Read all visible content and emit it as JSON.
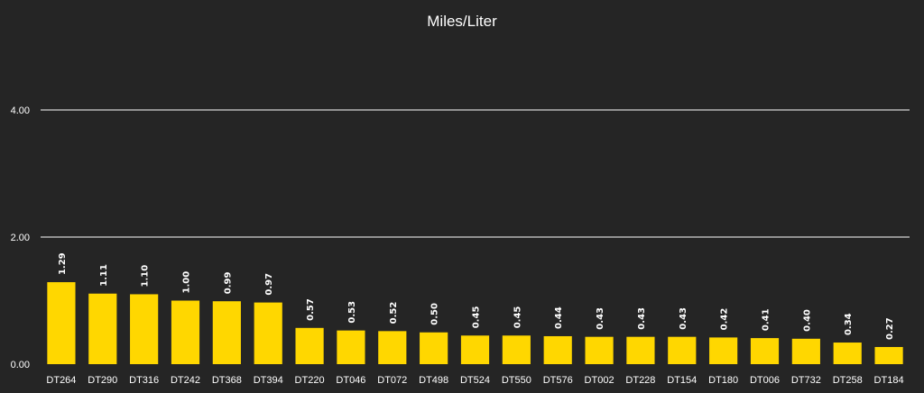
{
  "colors": {
    "background": "#252525",
    "bar": "#FFD700",
    "grid": "#ffffff",
    "text": "#ffffff"
  },
  "chart_data": {
    "type": "bar",
    "title": "Miles/Liter",
    "xlabel": "",
    "ylabel": "",
    "ylim": [
      0,
      4
    ],
    "yticks": [
      "0.00",
      "2.00",
      "4.00"
    ],
    "grid": true,
    "legend": "none",
    "categories": [
      "DT264",
      "DT290",
      "DT316",
      "DT242",
      "DT368",
      "DT394",
      "DT220",
      "DT046",
      "DT072",
      "DT498",
      "DT524",
      "DT550",
      "DT576",
      "DT002",
      "DT228",
      "DT154",
      "DT180",
      "DT006",
      "DT732",
      "DT258",
      "DT184"
    ],
    "values": [
      1.29,
      1.11,
      1.1,
      1.0,
      0.99,
      0.97,
      0.57,
      0.53,
      0.52,
      0.5,
      0.45,
      0.45,
      0.44,
      0.43,
      0.43,
      0.43,
      0.42,
      0.41,
      0.4,
      0.34,
      0.27
    ],
    "data_labels": [
      "1.29",
      "1.11",
      "1.10",
      "1.00",
      "0.99",
      "0.97",
      "0.57",
      "0.53",
      "0.52",
      "0.50",
      "0.45",
      "0.45",
      "0.44",
      "0.43",
      "0.43",
      "0.43",
      "0.42",
      "0.41",
      "0.40",
      "0.34",
      "0.27"
    ]
  }
}
